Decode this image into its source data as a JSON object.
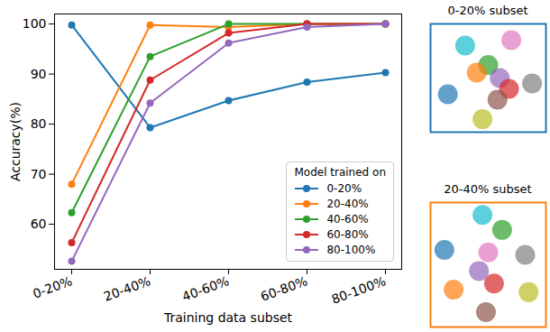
{
  "chart_data": [
    {
      "type": "line",
      "x_label": "Training data subset",
      "y_label": "Accuracy(%)",
      "categories": [
        "0-20%",
        "20-40%",
        "40-60%",
        "60-80%",
        "80-100%"
      ],
      "legend_title": "Model trained on",
      "series": [
        {
          "name": "0-20%",
          "color": "#1f77b4",
          "values": [
            99.8,
            79.3,
            84.7,
            88.4,
            90.3
          ]
        },
        {
          "name": "20-40%",
          "color": "#ff7f0e",
          "values": [
            68.0,
            99.8,
            99.4,
            100,
            100
          ]
        },
        {
          "name": "40-60%",
          "color": "#2ca02c",
          "values": [
            62.3,
            93.5,
            100,
            100,
            100
          ]
        },
        {
          "name": "60-80%",
          "color": "#d62728",
          "values": [
            56.3,
            88.8,
            98.2,
            100,
            100
          ]
        },
        {
          "name": "80-100%",
          "color": "#9467bd",
          "values": [
            52.6,
            84.2,
            96.2,
            99.4,
            100
          ]
        }
      ],
      "ylim": [
        51,
        102
      ],
      "yticks": [
        60,
        70,
        80,
        90,
        100
      ],
      "grid": false,
      "legend": "lower right",
      "marker": "o",
      "line_style": "solid"
    },
    {
      "type": "scatter",
      "title": "0-20% subset",
      "color": "#1f77b4",
      "tick_labels": false,
      "xlim": [
        0,
        1
      ],
      "ylim": [
        0,
        1
      ],
      "x": [
        0.3,
        0.15,
        0.45,
        0.5,
        0.6,
        0.7,
        0.4,
        0.68,
        0.58,
        0.88
      ],
      "y": [
        0.8,
        0.35,
        0.12,
        0.62,
        0.5,
        0.85,
        0.55,
        0.4,
        0.3,
        0.45
      ],
      "colors": [
        "#17becf",
        "#1f77b4",
        "#bcbd22",
        "#2ca02c",
        "#9467bd",
        "#e377c2",
        "#ff7f0e",
        "#d62728",
        "#8c564b",
        "#7f7f7f"
      ]
    },
    {
      "type": "scatter",
      "title": "20-40% subset",
      "color": "#ff7f0e",
      "tick_labels": false,
      "xlim": [
        0,
        1
      ],
      "ylim": [
        0,
        1
      ],
      "x": [
        0.45,
        0.62,
        0.5,
        0.12,
        0.2,
        0.42,
        0.55,
        0.48,
        0.82,
        0.85
      ],
      "y": [
        0.9,
        0.78,
        0.6,
        0.62,
        0.3,
        0.45,
        0.35,
        0.12,
        0.58,
        0.28
      ],
      "colors": [
        "#17becf",
        "#2ca02c",
        "#e377c2",
        "#1f77b4",
        "#ff7f0e",
        "#9467bd",
        "#d62728",
        "#8c564b",
        "#7f7f7f",
        "#bcbd22"
      ]
    }
  ]
}
